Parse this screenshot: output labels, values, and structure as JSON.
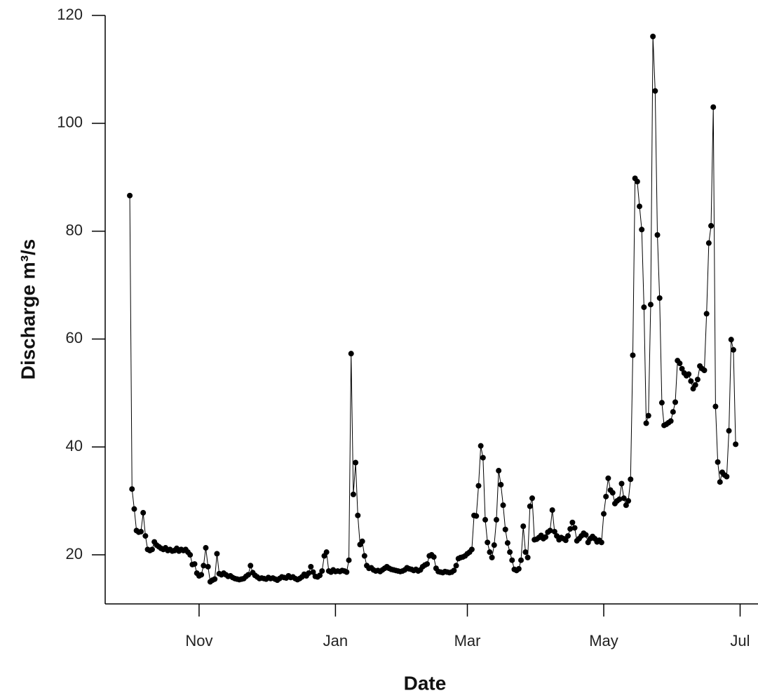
{
  "chart_data": {
    "type": "line-points",
    "xlabel": "Date",
    "ylabel": "Discharge m³/s",
    "color": "#000000",
    "xlim": [
      -42,
      250
    ],
    "ylim": [
      10.9,
      120
    ],
    "xticks": [
      {
        "value": 0,
        "label": "Nov"
      },
      {
        "value": 61,
        "label": "Jan"
      },
      {
        "value": 120,
        "label": "Mar"
      },
      {
        "value": 181,
        "label": "May"
      },
      {
        "value": 242,
        "label": "Jul"
      }
    ],
    "yticks": [
      20,
      40,
      60,
      80,
      100,
      120
    ],
    "x": [
      -31,
      -30,
      -29,
      -28,
      -27,
      -26,
      -25,
      -24,
      -23,
      -22,
      -21,
      -20,
      -19,
      -18,
      -17,
      -16,
      -15,
      -14,
      -13,
      -12,
      -11,
      -10,
      -9,
      -8,
      -7,
      -6,
      -5,
      -4,
      -3,
      -2,
      -1,
      0,
      1,
      2,
      3,
      4,
      5,
      6,
      7,
      8,
      9,
      10,
      11,
      12,
      13,
      14,
      15,
      16,
      17,
      18,
      19,
      20,
      21,
      22,
      23,
      24,
      25,
      26,
      27,
      28,
      29,
      30,
      31,
      32,
      33,
      34,
      35,
      36,
      37,
      38,
      39,
      40,
      41,
      42,
      43,
      44,
      45,
      46,
      47,
      48,
      49,
      50,
      51,
      52,
      53,
      54,
      55,
      56,
      57,
      58,
      59,
      60,
      61,
      62,
      63,
      64,
      65,
      66,
      67,
      68,
      69,
      70,
      71,
      72,
      73,
      74,
      75,
      76,
      77,
      78,
      79,
      80,
      81,
      82,
      83,
      84,
      85,
      86,
      87,
      88,
      89,
      90,
      91,
      92,
      93,
      94,
      95,
      96,
      97,
      98,
      99,
      100,
      101,
      102,
      103,
      104,
      105,
      106,
      107,
      108,
      109,
      110,
      111,
      112,
      113,
      114,
      115,
      116,
      117,
      118,
      119,
      120,
      121,
      122,
      123,
      124,
      125,
      126,
      127,
      128,
      129,
      130,
      131,
      132,
      133,
      134,
      135,
      136,
      137,
      138,
      139,
      140,
      141,
      142,
      143,
      144,
      145,
      146,
      147,
      148,
      149,
      150,
      151,
      152,
      153,
      154,
      155,
      156,
      157,
      158,
      159,
      160,
      161,
      162,
      163,
      164,
      165,
      166,
      167,
      168,
      169,
      170,
      171,
      172,
      173,
      174,
      175,
      176,
      177,
      178,
      179,
      180,
      181,
      182,
      183,
      184,
      185,
      186,
      187,
      188,
      189,
      190,
      191,
      192,
      193,
      194,
      195,
      196,
      197,
      198,
      199,
      200,
      201,
      202,
      203,
      204,
      205,
      206,
      207,
      208,
      209,
      210,
      211,
      212,
      213,
      214,
      215,
      216,
      217,
      218,
      219,
      220,
      221,
      222,
      223,
      224,
      225,
      226,
      227,
      228,
      229,
      230,
      231,
      232,
      233,
      234,
      235,
      236,
      237,
      238,
      239,
      240
    ],
    "values": [
      86.6,
      32.2,
      28.5,
      24.5,
      24.2,
      24.3,
      27.8,
      23.5,
      21.0,
      20.8,
      21.0,
      22.4,
      21.8,
      21.5,
      21.2,
      21.0,
      21.3,
      20.8,
      21.0,
      20.7,
      20.8,
      21.2,
      20.7,
      21.0,
      20.8,
      21.0,
      20.5,
      20.0,
      18.2,
      18.3,
      16.6,
      16.1,
      16.3,
      18.0,
      21.3,
      17.8,
      15.0,
      15.3,
      15.5,
      20.2,
      16.5,
      16.3,
      16.6,
      16.3,
      16.0,
      16.1,
      15.8,
      15.6,
      15.5,
      15.4,
      15.5,
      15.6,
      16.0,
      16.3,
      18.0,
      16.7,
      16.2,
      15.9,
      15.6,
      15.7,
      15.6,
      15.5,
      15.8,
      15.6,
      15.7,
      15.5,
      15.3,
      15.6,
      15.9,
      15.8,
      15.7,
      16.1,
      15.8,
      15.9,
      15.6,
      15.4,
      15.6,
      15.9,
      16.4,
      16.1,
      16.6,
      17.8,
      16.8,
      16.0,
      15.9,
      16.2,
      17.0,
      19.8,
      20.5,
      17.0,
      16.8,
      17.2,
      16.9,
      17.0,
      16.9,
      17.1,
      17.0,
      16.8,
      19.0,
      57.3,
      31.2,
      37.1,
      27.3,
      21.9,
      22.5,
      19.8,
      18.0,
      17.5,
      17.6,
      17.2,
      17.0,
      17.1,
      16.9,
      17.2,
      17.5,
      17.8,
      17.5,
      17.3,
      17.2,
      17.1,
      17.0,
      16.9,
      17.0,
      17.2,
      17.6,
      17.4,
      17.3,
      17.1,
      17.3,
      17.0,
      17.2,
      17.8,
      18.1,
      18.3,
      19.8,
      20.0,
      19.6,
      17.5,
      16.9,
      16.8,
      16.7,
      16.9,
      16.8,
      16.7,
      16.8,
      17.1,
      18.0,
      19.3,
      19.5,
      19.6,
      19.8,
      20.2,
      20.5,
      21.0,
      27.3,
      27.2,
      32.8,
      40.2,
      38.0,
      26.5,
      22.3,
      20.5,
      19.5,
      21.8,
      26.5,
      35.6,
      33.0,
      29.2,
      24.7,
      22.2,
      20.5,
      19.0,
      17.3,
      17.1,
      17.4,
      19.0,
      25.3,
      20.5,
      19.5,
      29.0,
      30.5,
      22.8,
      22.9,
      23.2,
      23.6,
      23.0,
      23.3,
      24.2,
      24.5,
      28.3,
      24.3,
      23.5,
      22.8,
      23.2,
      23.0,
      22.7,
      23.5,
      24.8,
      26.0,
      25.0,
      22.6,
      23.0,
      23.5,
      24.0,
      23.7,
      22.3,
      23.0,
      23.4,
      23.0,
      22.4,
      22.7,
      22.3,
      27.6,
      30.8,
      34.2,
      32.0,
      31.5,
      29.5,
      30.0,
      30.3,
      33.2,
      30.5,
      29.2,
      30.0,
      34.0,
      57.0,
      89.8,
      89.2,
      84.6,
      80.3,
      65.9,
      44.4,
      45.8,
      66.4,
      116.1,
      106.0,
      79.3,
      67.6,
      48.2,
      44.0,
      44.2,
      44.5,
      44.8,
      46.5,
      48.3,
      56.0,
      55.5,
      54.5,
      53.7,
      53.2,
      53.5,
      52.2,
      50.8,
      51.5,
      52.5,
      55.0,
      54.5,
      54.2,
      64.7,
      77.8,
      81.0,
      103.0,
      47.5,
      37.2,
      33.5,
      35.3,
      34.8,
      34.5,
      43.0,
      59.9,
      58.0,
      40.5
    ]
  }
}
